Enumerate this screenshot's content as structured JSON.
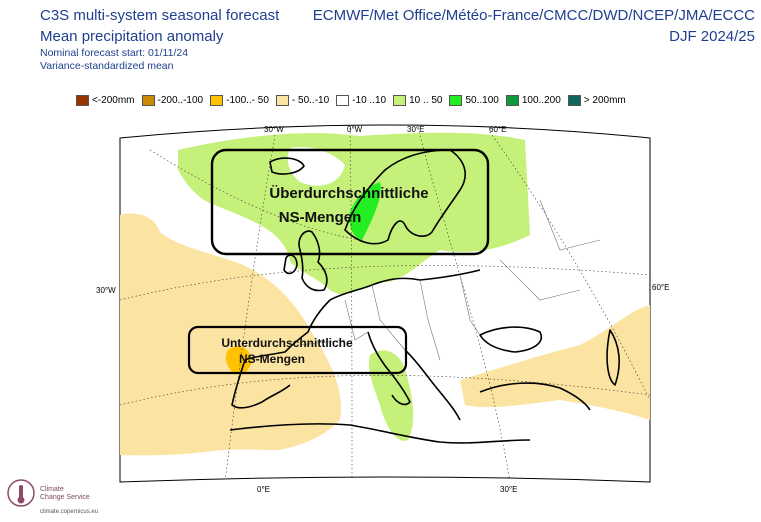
{
  "header": {
    "title_line1": "C3S multi-system seasonal forecast",
    "title_line2": "Mean precipitation anomaly",
    "subtitle_line1": "Nominal forecast start: 01/11/24",
    "subtitle_line2": "Variance-standardized mean",
    "centres": "ECMWF/Met Office/Météo-France/CMCC/DWD/NCEP/JMA/ECCC",
    "season": "DJF 2024/25"
  },
  "legend": [
    {
      "label": "<-200mm",
      "color": "#993300"
    },
    {
      "label": "-200..-100",
      "color": "#cc8800"
    },
    {
      "label": "-100..- 50",
      "color": "#ffc200"
    },
    {
      "label": "- 50..-10",
      "color": "#fbe3a2"
    },
    {
      "label": "-10 ..10",
      "color": "#ffffff"
    },
    {
      "label": "10 .. 50",
      "color": "#c5f07a"
    },
    {
      "label": "50..100",
      "color": "#22ee22"
    },
    {
      "label": "100..200",
      "color": "#0e9a3a"
    },
    {
      "label": "> 200mm",
      "color": "#0f6660"
    }
  ],
  "map": {
    "ticks_top": [
      "30°W",
      "0°W",
      "30°E",
      "60°E"
    ],
    "tick_left": "30°W",
    "tick_right": "60°E",
    "ticks_bottom": [
      "0°E",
      "30°E"
    ],
    "annotation_north": [
      "Überdurchschnittliche",
      "NS-Mengen"
    ],
    "annotation_south": [
      "Unterdurchschnittliche",
      "NS-Mengen"
    ]
  },
  "logo": {
    "name_line1": "Climate",
    "name_line2": "Change Service",
    "url": "climate.copernicus.eu"
  }
}
